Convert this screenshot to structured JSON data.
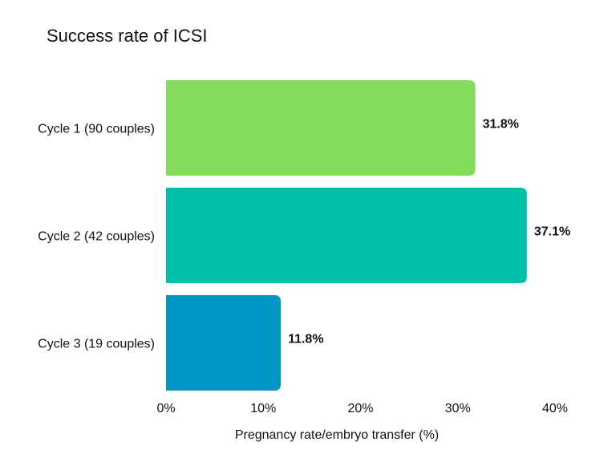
{
  "chart_data": {
    "type": "bar",
    "orientation": "horizontal",
    "title": "Success rate of ICSI",
    "xlabel": "Pregnancy rate/embryo transfer (%)",
    "ylabel": "",
    "categories": [
      "Cycle 1 (90 couples)",
      "Cycle 2 (42 couples)",
      "Cycle 3 (19 couples)"
    ],
    "values": [
      31.8,
      37.1,
      11.8
    ],
    "data_labels": [
      "31.8%",
      "37.1%",
      "11.8%"
    ],
    "colors": [
      "#82db5a",
      "#00bfa8",
      "#0096c4"
    ],
    "xlim": [
      0,
      40
    ],
    "xticks": [
      0,
      10,
      20,
      30,
      40
    ],
    "xtick_labels": [
      "0%",
      "10%",
      "20%",
      "30%",
      "40%"
    ],
    "grid": false,
    "legend": "none"
  }
}
